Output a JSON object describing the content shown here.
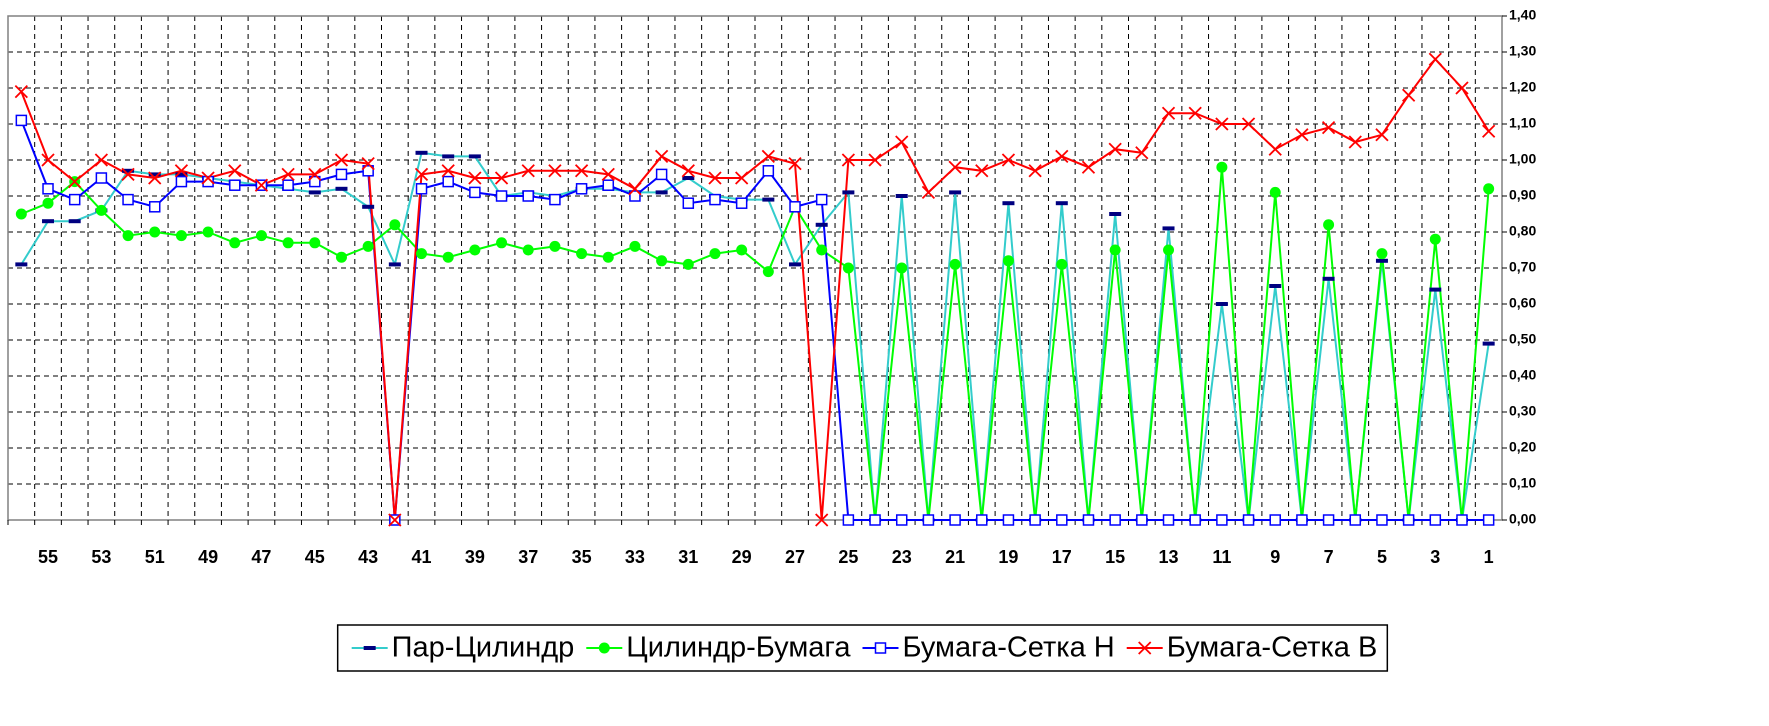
{
  "chart_data": {
    "type": "line",
    "categories": [
      null,
      "55",
      null,
      "53",
      null,
      "51",
      null,
      "49",
      null,
      "47",
      null,
      "45",
      null,
      "43",
      null,
      "41",
      null,
      "39",
      null,
      "37",
      null,
      "35",
      null,
      "33",
      null,
      "31",
      null,
      "29",
      null,
      "27",
      null,
      "25",
      null,
      "23",
      null,
      "21",
      null,
      "19",
      null,
      "17",
      null,
      "15",
      null,
      "13",
      null,
      "11",
      null,
      "9",
      null,
      "7",
      null,
      "5",
      null,
      "3",
      null,
      "1"
    ],
    "series": [
      {
        "name": "Пар-Цилиндр",
        "color": "#33cccc",
        "marker": "dash",
        "marker_color": "#000080",
        "values": [
          0.71,
          0.83,
          0.83,
          0.86,
          0.97,
          0.96,
          0.96,
          0.95,
          0.94,
          0.93,
          0.92,
          0.91,
          0.92,
          0.87,
          0.71,
          1.02,
          1.01,
          1.01,
          0.9,
          0.91,
          0.9,
          0.92,
          0.92,
          0.91,
          0.91,
          0.95,
          0.9,
          0.89,
          0.89,
          0.71,
          0.82,
          0.91,
          0,
          0.9,
          0,
          0.91,
          0,
          0.88,
          0,
          0.88,
          0,
          0.85,
          0,
          0.81,
          0,
          0.6,
          0,
          0.65,
          0,
          0.67,
          0,
          0.72,
          0,
          0.64,
          0,
          0.49
        ]
      },
      {
        "name": "Цилиндр-Бумага",
        "color": "#00ff00",
        "marker": "circle",
        "marker_color": "#00ff00",
        "values": [
          0.85,
          0.88,
          0.94,
          0.86,
          0.79,
          0.8,
          0.79,
          0.8,
          0.77,
          0.79,
          0.77,
          0.77,
          0.73,
          0.76,
          0.82,
          0.74,
          0.73,
          0.75,
          0.77,
          0.75,
          0.76,
          0.74,
          0.73,
          0.76,
          0.72,
          0.71,
          0.74,
          0.75,
          0.69,
          0.87,
          0.75,
          0.7,
          0,
          0.7,
          0,
          0.71,
          0,
          0.72,
          0,
          0.71,
          0,
          0.75,
          0,
          0.75,
          0,
          0.98,
          0,
          0.91,
          0,
          0.82,
          0,
          0.74,
          0,
          0.78,
          0,
          0.92
        ]
      },
      {
        "name": "Бумага-Сетка Н",
        "color": "#0000ff",
        "marker": "square",
        "marker_color": "#0000ff",
        "values": [
          1.11,
          0.92,
          0.89,
          0.95,
          0.89,
          0.87,
          0.94,
          0.94,
          0.93,
          0.93,
          0.93,
          0.94,
          0.96,
          0.97,
          0,
          0.92,
          0.94,
          0.91,
          0.9,
          0.9,
          0.89,
          0.92,
          0.93,
          0.9,
          0.96,
          0.88,
          0.89,
          0.88,
          0.97,
          0.87,
          0.89,
          0,
          0,
          0,
          0,
          0,
          0,
          0,
          0,
          0,
          0,
          0,
          0,
          0,
          0,
          0,
          0,
          0,
          0,
          0,
          0,
          0,
          0,
          0,
          0,
          0
        ]
      },
      {
        "name": "Бумага-Сетка В",
        "color": "#ff0000",
        "marker": "x",
        "marker_color": "#ff0000",
        "values": [
          1.19,
          1.0,
          0.94,
          1.0,
          0.96,
          0.95,
          0.97,
          0.95,
          0.97,
          0.93,
          0.96,
          0.96,
          1.0,
          0.99,
          0,
          0.96,
          0.97,
          0.95,
          0.95,
          0.97,
          0.97,
          0.97,
          0.96,
          0.92,
          1.01,
          0.97,
          0.95,
          0.95,
          1.01,
          0.99,
          0,
          1.0,
          1.0,
          1.05,
          0.91,
          0.98,
          0.97,
          1.0,
          0.97,
          1.01,
          0.98,
          1.03,
          1.02,
          1.13,
          1.13,
          1.1,
          1.1,
          1.03,
          1.07,
          1.09,
          1.05,
          1.07,
          1.18,
          1.28,
          1.2,
          1.08
        ]
      }
    ],
    "ylim": [
      0,
      1.4
    ],
    "yticks": [
      {
        "value": 0,
        "label": "0,00"
      },
      {
        "value": 0.1,
        "label": "0,10"
      },
      {
        "value": 0.2,
        "label": "0,20"
      },
      {
        "value": 0.3,
        "label": "0,30"
      },
      {
        "value": 0.4,
        "label": "0,40"
      },
      {
        "value": 0.5,
        "label": "0,50"
      },
      {
        "value": 0.6,
        "label": "0,60"
      },
      {
        "value": 0.7,
        "label": "0,70"
      },
      {
        "value": 0.8,
        "label": "0,80"
      },
      {
        "value": 0.9,
        "label": "0,90"
      },
      {
        "value": 1.0,
        "label": "1,00"
      },
      {
        "value": 1.1,
        "label": "1,10"
      },
      {
        "value": 1.2,
        "label": "1,20"
      },
      {
        "value": 1.3,
        "label": "1,30"
      },
      {
        "value": 1.4,
        "label": "1,40"
      }
    ],
    "grid": true,
    "y_axis_side": "right",
    "legend": "bottom"
  }
}
